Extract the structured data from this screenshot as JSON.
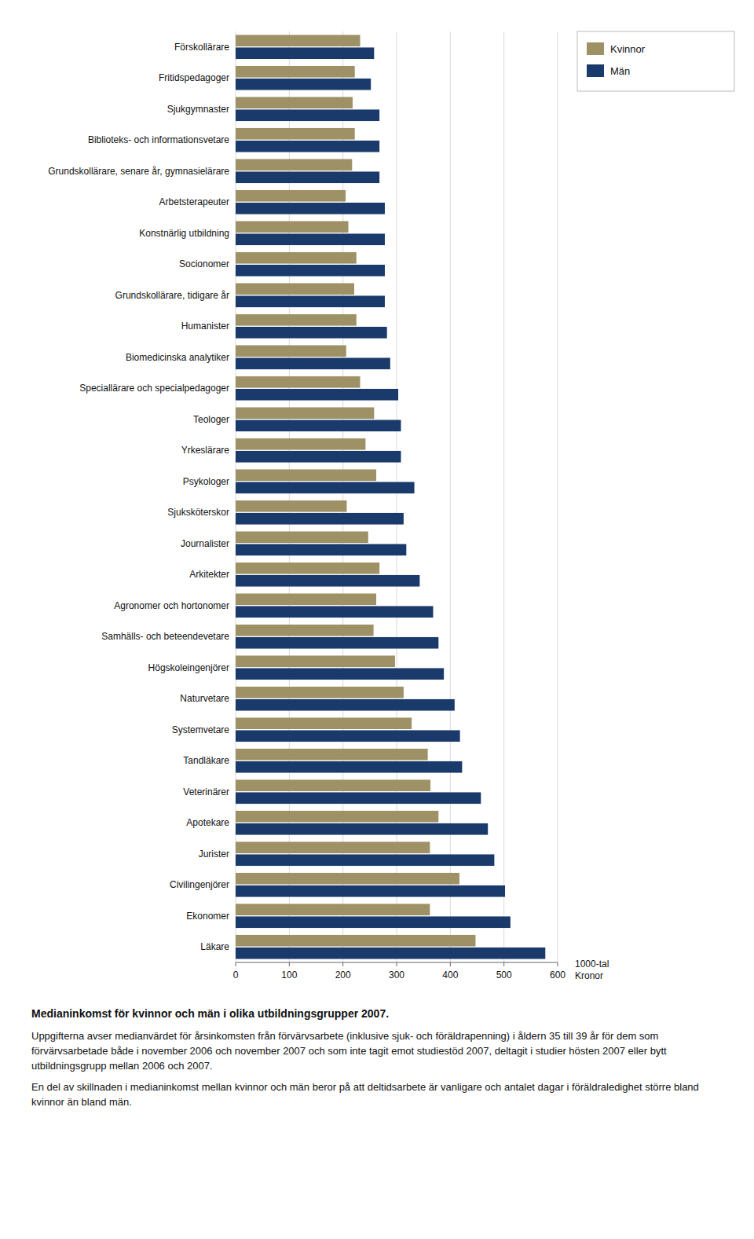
{
  "chart_data": {
    "type": "bar",
    "orientation": "horizontal",
    "title": "Medianinkomst för kvinnor och män i olika utbildningsgrupper 2007.",
    "xlabel": "1000-tal\nKronor",
    "annotations": [
      "Uppgifterna avser medianvärdet för årsinkomsten från förvärvsarbete (inklusive sjuk- och föräldrapenning) i åldern 35 till 39 år för dem som förvärvsarbetade både i november 2006 och november 2007 och som inte tagit emot studiestöd 2007, deltagit i studier hösten 2007 eller bytt utbildningsgrupp mellan 2006 och 2007.",
      "En del av skillnaden i medianinkomst mellan kvinnor och män beror på att deltidsarbete är vanligare och antalet dagar i föräldraledighet större bland kvinnor än bland män."
    ],
    "categories": [
      "Förskollärare",
      "Fritidspedagoger",
      "Sjukgymnaster",
      "Biblioteks- och informationsvetare",
      "Grundskollärare, senare år, gymnasielärare",
      "Arbetsterapeuter",
      "Konstnärlig utbildning",
      "Socionomer",
      "Grundskollärare, tidigare år",
      "Humanister",
      "Biomedicinska analytiker",
      "Speciallärare och specialpedagoger",
      "Teologer",
      "Yrkeslärare",
      "Psykologer",
      "Sjuksköterskor",
      "Journalister",
      "Arkitekter",
      "Agronomer och hortonomer",
      "Samhälls- och beteendevetare",
      "Högskoleingenjörer",
      "Naturvetare",
      "Systemvetare",
      "Tandläkare",
      "Veterinärer",
      "Apotekare",
      "Jurister",
      "Civilingenjörer",
      "Ekonomer",
      "Läkare"
    ],
    "series": [
      {
        "name": "Kvinnor",
        "color": "#9e9166",
        "values": [
          232,
          222,
          218,
          222,
          217,
          205,
          210,
          225,
          221,
          225,
          206,
          232,
          258,
          242,
          262,
          207,
          247,
          268,
          262,
          257,
          297,
          313,
          328,
          358,
          363,
          378,
          362,
          417,
          362,
          447
        ]
      },
      {
        "name": "Män",
        "color": "#1a3a6b",
        "values": [
          258,
          252,
          268,
          268,
          268,
          278,
          278,
          278,
          278,
          282,
          288,
          303,
          308,
          308,
          333,
          313,
          318,
          343,
          368,
          378,
          388,
          408,
          418,
          422,
          457,
          470,
          482,
          502,
          512,
          577
        ]
      }
    ],
    "xlim": [
      0,
      600
    ],
    "xticks": [
      0,
      100,
      200,
      300,
      400,
      500,
      600
    ],
    "grid": true,
    "legend": "upper right"
  }
}
